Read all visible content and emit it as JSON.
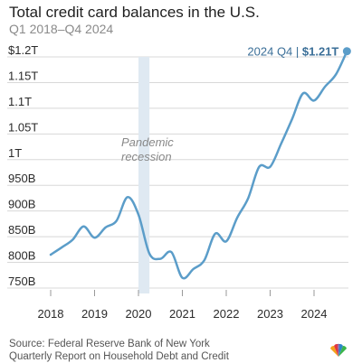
{
  "header": {
    "title": "Total credit card balances in the U.S.",
    "subtitle": "Q1 2018–Q4 2024"
  },
  "source": {
    "line1": "Source: Federal Reserve Bank of New York",
    "line2": "Quarterly Report on Household Debt and Credit"
  },
  "logo": {
    "icon": "nbc-peacock-icon"
  },
  "colors": {
    "line": "#5b9dc9",
    "shade": "#dfe9f2",
    "grid": "#d8d8d8",
    "end_text": "#3b6f98"
  },
  "chart_data": {
    "type": "line",
    "title": "Total credit card balances in the U.S.",
    "subtitle": "Q1 2018–Q4 2024",
    "xlabel": "",
    "ylabel": "",
    "ylim": [
      750,
      1200
    ],
    "y_ticks": [
      750,
      800,
      850,
      900,
      950,
      1000,
      1050,
      1100,
      1150,
      1200
    ],
    "y_tick_labels": [
      "750B",
      "800B",
      "850B",
      "900B",
      "950B",
      "1T",
      "1.05T",
      "1.1T",
      "1.15T",
      "$1.2T"
    ],
    "x_ticks": [
      "2018",
      "2019",
      "2020",
      "2021",
      "2022",
      "2023",
      "2024"
    ],
    "grid": true,
    "shaded_region": {
      "label_line1": "Pandemic",
      "label_line2": "recession",
      "from": "2020 Q1",
      "to": "2020 Q2"
    },
    "end_label": {
      "prefix": "2024 Q4 |",
      "value": "$1.21T"
    },
    "x": [
      "2018 Q1",
      "2018 Q2",
      "2018 Q3",
      "2018 Q4",
      "2019 Q1",
      "2019 Q2",
      "2019 Q3",
      "2019 Q4",
      "2020 Q1",
      "2020 Q2",
      "2020 Q3",
      "2020 Q4",
      "2021 Q1",
      "2021 Q2",
      "2021 Q3",
      "2021 Q4",
      "2022 Q1",
      "2022 Q2",
      "2022 Q3",
      "2022 Q4",
      "2023 Q1",
      "2023 Q2",
      "2023 Q3",
      "2023 Q4",
      "2024 Q1",
      "2024 Q2",
      "2024 Q3",
      "2024 Q4"
    ],
    "series": [
      {
        "values": [
          815,
          829,
          844,
          870,
          848,
          868,
          881,
          927,
          893,
          817,
          807,
          820,
          770,
          787,
          804,
          856,
          841,
          887,
          925,
          986,
          986,
          1031,
          1079,
          1129,
          1115,
          1142,
          1166,
          1211
        ]
      }
    ]
  }
}
